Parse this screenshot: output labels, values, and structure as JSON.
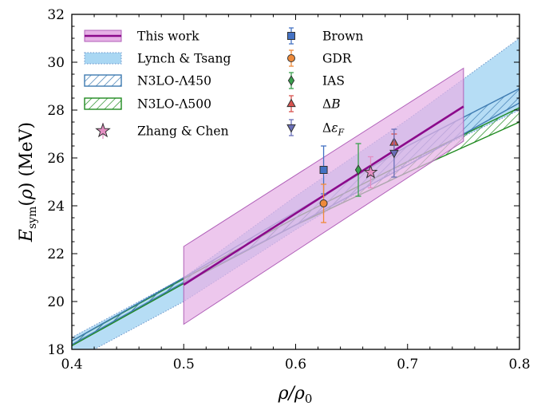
{
  "chart_data": {
    "type": "line",
    "xlabel": "ρ/ρ0",
    "ylabel": "Esym(ρ) (MeV)",
    "xlim": [
      0.4,
      0.8
    ],
    "ylim": [
      18,
      32
    ],
    "xticks": [
      "0.4",
      "0.5",
      "0.6",
      "0.7",
      "0.8"
    ],
    "yticks": [
      "18",
      "20",
      "22",
      "24",
      "26",
      "28",
      "30",
      "32"
    ],
    "grid": false,
    "legend_placement": "top-left",
    "colors": {
      "this_work": "#8b0a8b",
      "this_work_fill": "#e6b1e6",
      "lynch_tsang_fill": "#a9d7f3",
      "lynch_tsang_edge": "#6a93c8",
      "n3lo_450": "#3e7bb1",
      "n3lo_500": "#1f8a1f",
      "zhang_chen": "#e48ec2",
      "brown": "#4472c4",
      "gdr": "#ee8a3a",
      "ias": "#3aa14e",
      "delta_b": "#d9534f",
      "delta_ef": "#6a6fb8"
    },
    "bands": [
      {
        "name": "This work",
        "x": [
          0.5,
          0.75
        ],
        "center": [
          20.7,
          28.15
        ],
        "upper": [
          22.3,
          29.75
        ],
        "lower": [
          19.05,
          26.7
        ]
      },
      {
        "name": "Lynch & Tsang",
        "x": [
          0.4,
          0.5,
          0.6,
          0.7,
          0.8
        ],
        "upper": [
          18.5,
          21.0,
          24.4,
          27.6,
          31.0
        ],
        "lower": [
          17.5,
          20.0,
          23.0,
          25.8,
          28.0
        ]
      },
      {
        "name": "N3LO-Λ450",
        "x": [
          0.4,
          0.5,
          0.6,
          0.7,
          0.8
        ],
        "upper": [
          18.35,
          21.0,
          23.75,
          26.5,
          28.9
        ],
        "lower": [
          18.2,
          20.8,
          23.2,
          25.7,
          28.3
        ]
      },
      {
        "name": "N3LO-Λ500",
        "x": [
          0.4,
          0.5,
          0.6,
          0.7,
          0.8
        ],
        "upper": [
          18.35,
          20.95,
          23.5,
          25.85,
          28.1
        ],
        "lower": [
          18.15,
          20.75,
          23.2,
          25.4,
          27.5
        ]
      }
    ],
    "points": [
      {
        "name": "Brown",
        "marker": "square",
        "x": 0.625,
        "y": 25.5,
        "yerr": [
          1.0,
          1.0
        ]
      },
      {
        "name": "GDR",
        "marker": "circle",
        "x": 0.625,
        "y": 24.1,
        "yerr": [
          0.8,
          0.8
        ]
      },
      {
        "name": "IAS",
        "marker": "diamond",
        "x": 0.656,
        "y": 25.5,
        "yerr": [
          1.1,
          1.1
        ]
      },
      {
        "name": "ΔB",
        "marker": "triangle-up",
        "x": 0.688,
        "y": 26.65,
        "yerr": [
          0.35,
          0.35
        ]
      },
      {
        "name": "Δε_F",
        "marker": "triangle-down",
        "x": 0.688,
        "y": 26.2,
        "yerr": [
          1.0,
          1.0
        ]
      },
      {
        "name": "Zhang & Chen",
        "marker": "star",
        "x": 0.667,
        "y": 25.4,
        "yerr": [
          0.65,
          0.65
        ]
      }
    ],
    "legend_col1": [
      "This work",
      "Lynch & Tsang",
      "N3LO-Λ450",
      "N3LO-Λ500",
      "Zhang & Chen"
    ],
    "legend_col2": [
      "Brown",
      "GDR",
      "IAS",
      "ΔB",
      "Δε_F"
    ]
  }
}
